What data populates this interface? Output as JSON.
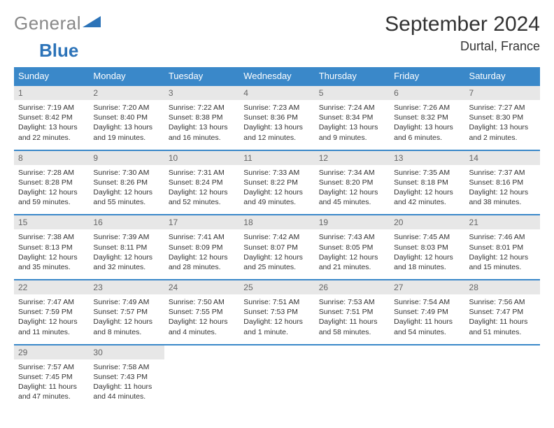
{
  "logo": {
    "word1": "General",
    "word2": "Blue"
  },
  "title": "September 2024",
  "location": "Durtal, France",
  "colors": {
    "header_bg": "#3a88c9",
    "header_text": "#ffffff",
    "daynum_bg": "#e7e7e7",
    "daynum_text": "#666666",
    "border": "#3a88c9",
    "logo_gray": "#888888",
    "logo_blue": "#2c73b8"
  },
  "columns": [
    "Sunday",
    "Monday",
    "Tuesday",
    "Wednesday",
    "Thursday",
    "Friday",
    "Saturday"
  ],
  "weeks": [
    [
      {
        "n": "1",
        "sr": "7:19 AM",
        "ss": "8:42 PM",
        "dl": "13 hours and 22 minutes."
      },
      {
        "n": "2",
        "sr": "7:20 AM",
        "ss": "8:40 PM",
        "dl": "13 hours and 19 minutes."
      },
      {
        "n": "3",
        "sr": "7:22 AM",
        "ss": "8:38 PM",
        "dl": "13 hours and 16 minutes."
      },
      {
        "n": "4",
        "sr": "7:23 AM",
        "ss": "8:36 PM",
        "dl": "13 hours and 12 minutes."
      },
      {
        "n": "5",
        "sr": "7:24 AM",
        "ss": "8:34 PM",
        "dl": "13 hours and 9 minutes."
      },
      {
        "n": "6",
        "sr": "7:26 AM",
        "ss": "8:32 PM",
        "dl": "13 hours and 6 minutes."
      },
      {
        "n": "7",
        "sr": "7:27 AM",
        "ss": "8:30 PM",
        "dl": "13 hours and 2 minutes."
      }
    ],
    [
      {
        "n": "8",
        "sr": "7:28 AM",
        "ss": "8:28 PM",
        "dl": "12 hours and 59 minutes."
      },
      {
        "n": "9",
        "sr": "7:30 AM",
        "ss": "8:26 PM",
        "dl": "12 hours and 55 minutes."
      },
      {
        "n": "10",
        "sr": "7:31 AM",
        "ss": "8:24 PM",
        "dl": "12 hours and 52 minutes."
      },
      {
        "n": "11",
        "sr": "7:33 AM",
        "ss": "8:22 PM",
        "dl": "12 hours and 49 minutes."
      },
      {
        "n": "12",
        "sr": "7:34 AM",
        "ss": "8:20 PM",
        "dl": "12 hours and 45 minutes."
      },
      {
        "n": "13",
        "sr": "7:35 AM",
        "ss": "8:18 PM",
        "dl": "12 hours and 42 minutes."
      },
      {
        "n": "14",
        "sr": "7:37 AM",
        "ss": "8:16 PM",
        "dl": "12 hours and 38 minutes."
      }
    ],
    [
      {
        "n": "15",
        "sr": "7:38 AM",
        "ss": "8:13 PM",
        "dl": "12 hours and 35 minutes."
      },
      {
        "n": "16",
        "sr": "7:39 AM",
        "ss": "8:11 PM",
        "dl": "12 hours and 32 minutes."
      },
      {
        "n": "17",
        "sr": "7:41 AM",
        "ss": "8:09 PM",
        "dl": "12 hours and 28 minutes."
      },
      {
        "n": "18",
        "sr": "7:42 AM",
        "ss": "8:07 PM",
        "dl": "12 hours and 25 minutes."
      },
      {
        "n": "19",
        "sr": "7:43 AM",
        "ss": "8:05 PM",
        "dl": "12 hours and 21 minutes."
      },
      {
        "n": "20",
        "sr": "7:45 AM",
        "ss": "8:03 PM",
        "dl": "12 hours and 18 minutes."
      },
      {
        "n": "21",
        "sr": "7:46 AM",
        "ss": "8:01 PM",
        "dl": "12 hours and 15 minutes."
      }
    ],
    [
      {
        "n": "22",
        "sr": "7:47 AM",
        "ss": "7:59 PM",
        "dl": "12 hours and 11 minutes."
      },
      {
        "n": "23",
        "sr": "7:49 AM",
        "ss": "7:57 PM",
        "dl": "12 hours and 8 minutes."
      },
      {
        "n": "24",
        "sr": "7:50 AM",
        "ss": "7:55 PM",
        "dl": "12 hours and 4 minutes."
      },
      {
        "n": "25",
        "sr": "7:51 AM",
        "ss": "7:53 PM",
        "dl": "12 hours and 1 minute."
      },
      {
        "n": "26",
        "sr": "7:53 AM",
        "ss": "7:51 PM",
        "dl": "11 hours and 58 minutes."
      },
      {
        "n": "27",
        "sr": "7:54 AM",
        "ss": "7:49 PM",
        "dl": "11 hours and 54 minutes."
      },
      {
        "n": "28",
        "sr": "7:56 AM",
        "ss": "7:47 PM",
        "dl": "11 hours and 51 minutes."
      }
    ],
    [
      {
        "n": "29",
        "sr": "7:57 AM",
        "ss": "7:45 PM",
        "dl": "11 hours and 47 minutes."
      },
      {
        "n": "30",
        "sr": "7:58 AM",
        "ss": "7:43 PM",
        "dl": "11 hours and 44 minutes."
      },
      null,
      null,
      null,
      null,
      null
    ]
  ],
  "labels": {
    "sunrise": "Sunrise:",
    "sunset": "Sunset:",
    "daylight": "Daylight:"
  }
}
